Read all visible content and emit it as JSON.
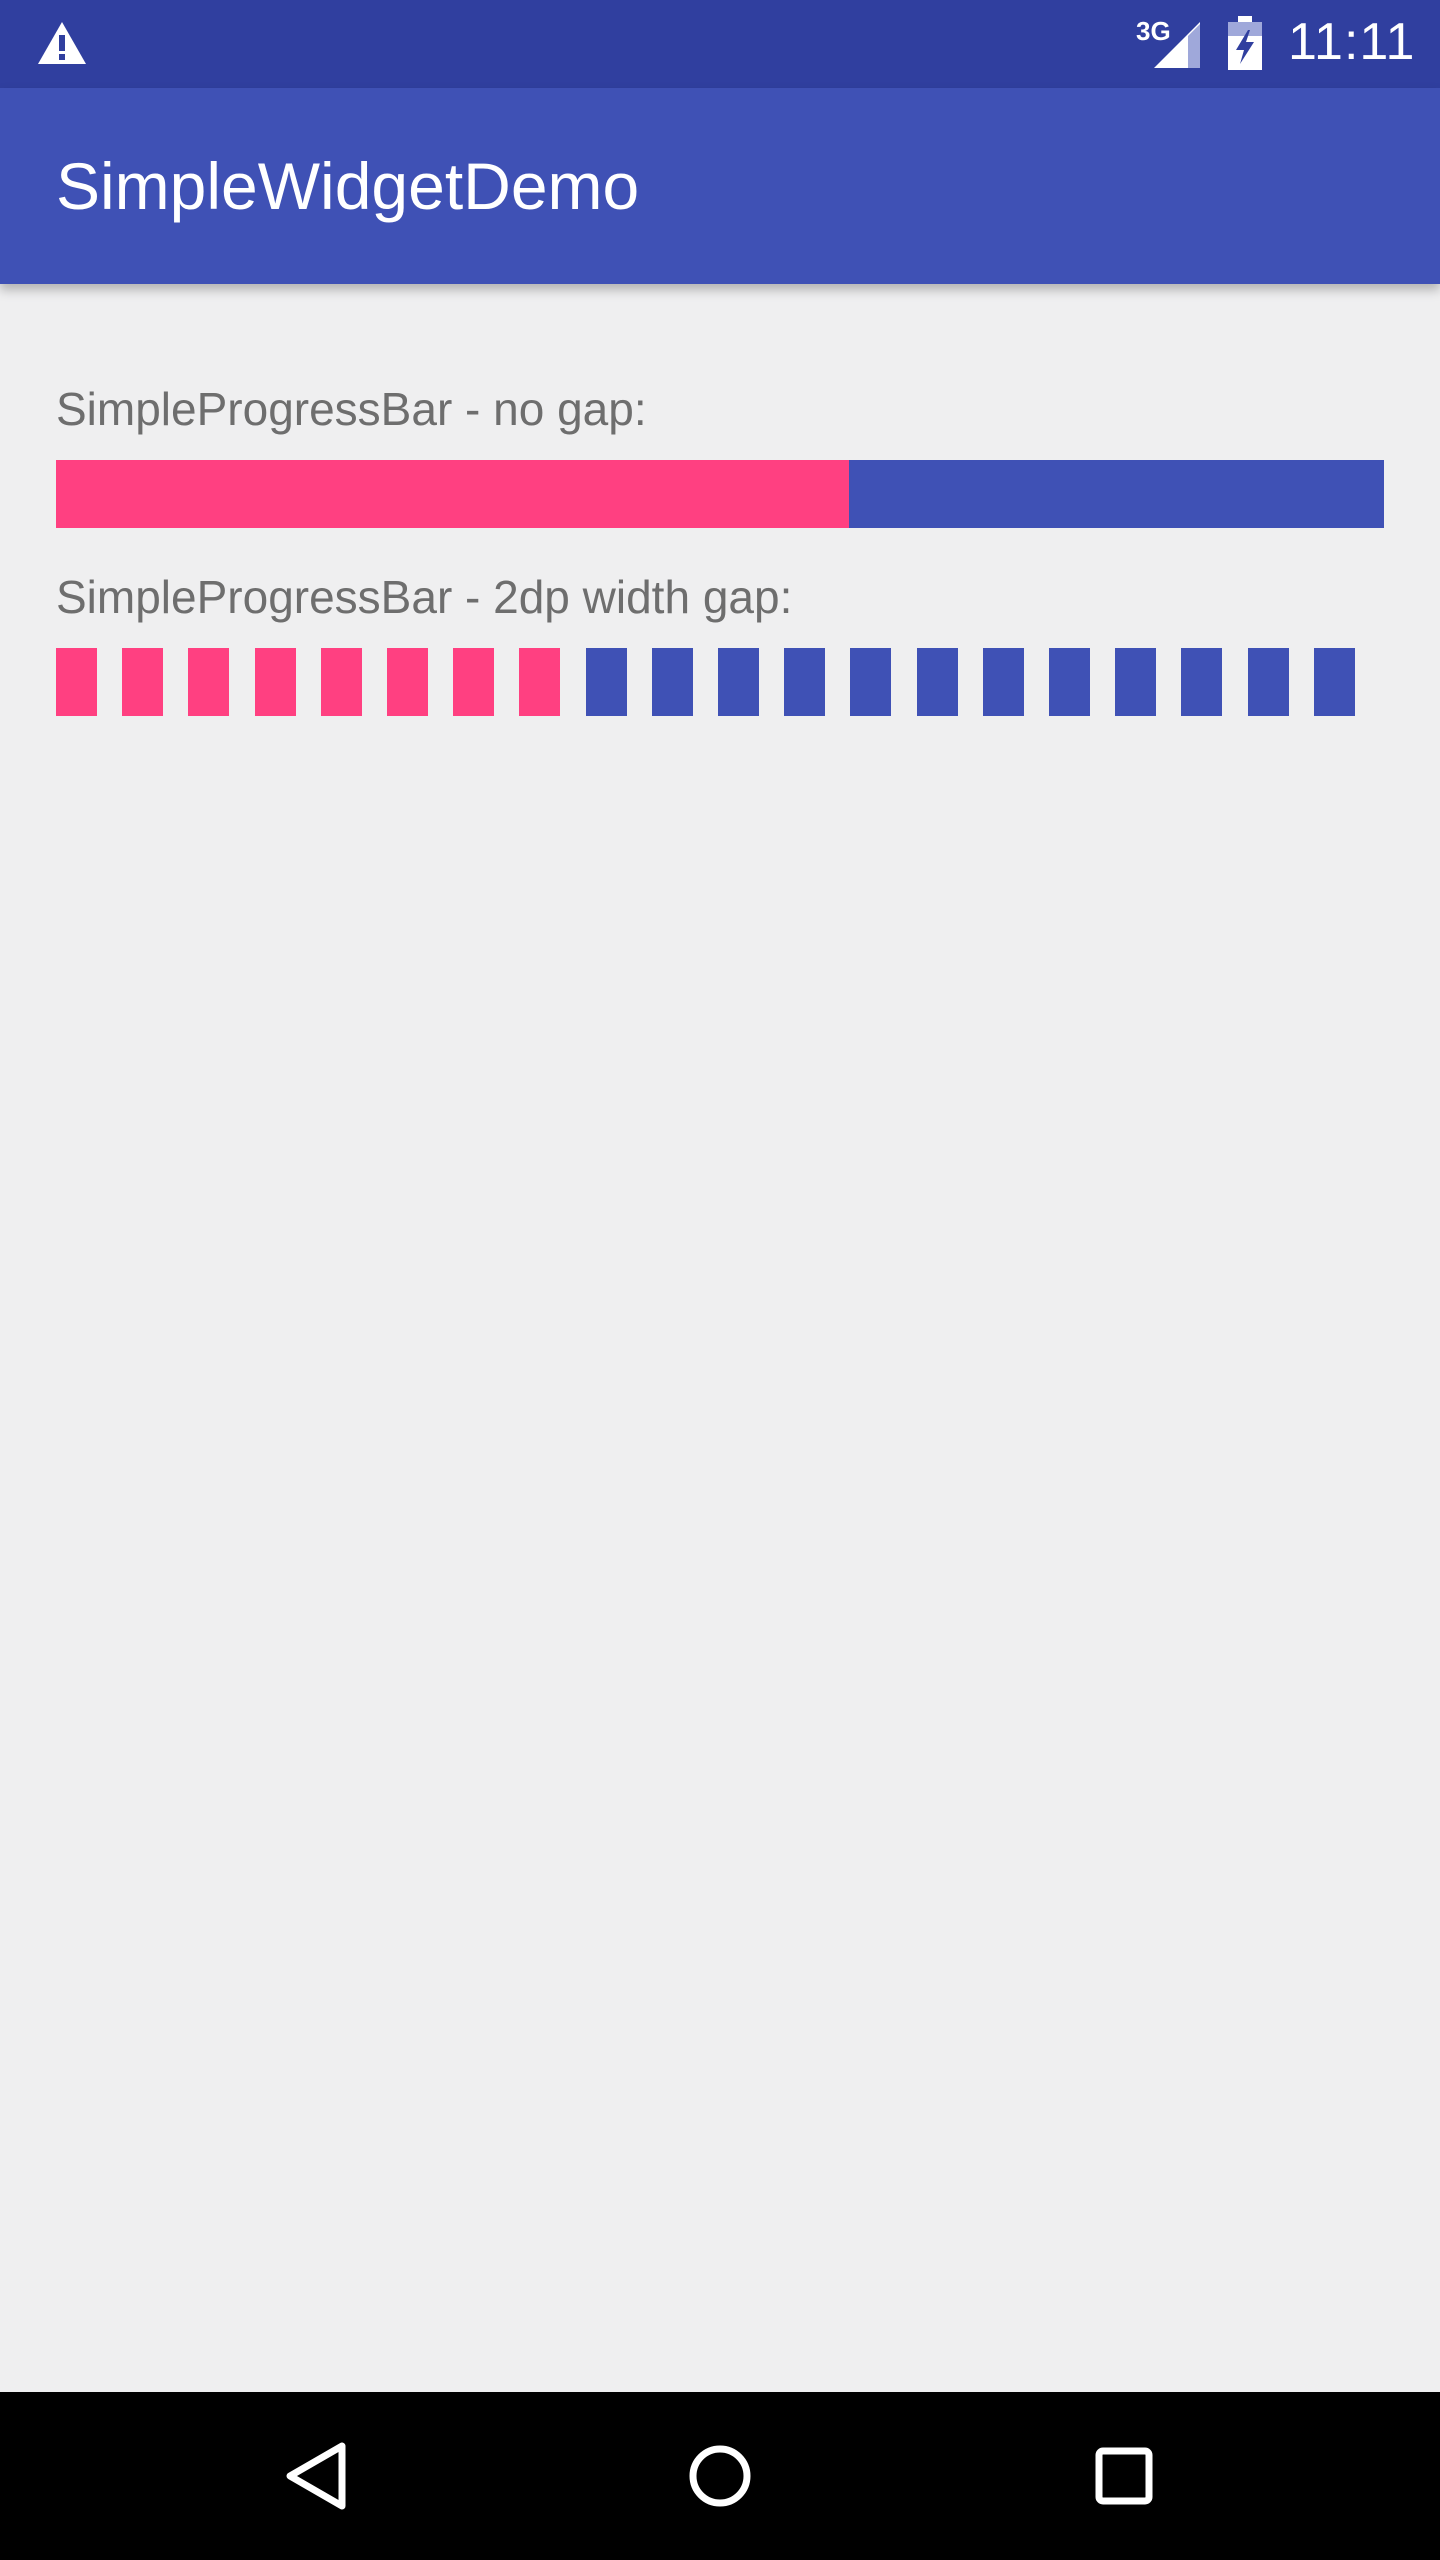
{
  "status_bar": {
    "network": "3G",
    "time": "11:11",
    "icons": [
      "warning-icon",
      "signal-icon",
      "battery-charging-icon"
    ]
  },
  "app_bar": {
    "title": "SimpleWidgetDemo"
  },
  "progress_no_gap": {
    "label": "SimpleProgressBar - no gap:",
    "progress_fraction": 0.597,
    "colors": {
      "progress": "#ff4081",
      "track": "#3f51b5"
    }
  },
  "progress_gap": {
    "label": "SimpleProgressBar - 2dp width gap:",
    "segments_total": 20,
    "segments_filled": 8,
    "colors": {
      "progress": "#ff4081",
      "track": "#3f51b5"
    }
  },
  "nav_bar": {
    "icons": [
      "back-icon",
      "home-icon",
      "recents-icon"
    ]
  }
}
